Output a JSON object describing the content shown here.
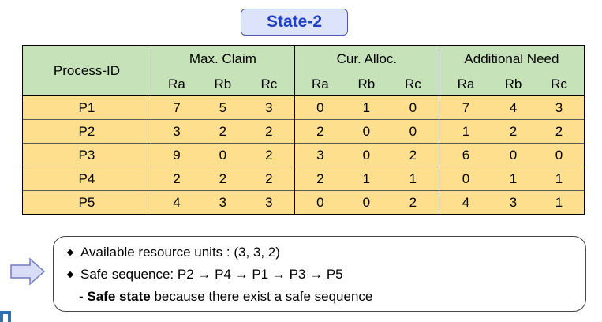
{
  "title": "State-2",
  "table": {
    "process_header": "Process-ID",
    "groups": [
      "Max. Claim",
      "Cur. Alloc.",
      "Additional Need"
    ],
    "resources": [
      "Ra",
      "Rb",
      "Rc"
    ],
    "rows": [
      {
        "id": "P1",
        "max": [
          "7",
          "5",
          "3"
        ],
        "cur": [
          "0",
          "1",
          "0"
        ],
        "need": [
          "7",
          "4",
          "3"
        ]
      },
      {
        "id": "P2",
        "max": [
          "3",
          "2",
          "2"
        ],
        "cur": [
          "2",
          "0",
          "0"
        ],
        "need": [
          "1",
          "2",
          "2"
        ]
      },
      {
        "id": "P3",
        "max": [
          "9",
          "0",
          "2"
        ],
        "cur": [
          "3",
          "0",
          "2"
        ],
        "need": [
          "6",
          "0",
          "0"
        ]
      },
      {
        "id": "P4",
        "max": [
          "2",
          "2",
          "2"
        ],
        "cur": [
          "2",
          "1",
          "1"
        ],
        "need": [
          "0",
          "1",
          "1"
        ]
      },
      {
        "id": "P5",
        "max": [
          "4",
          "3",
          "3"
        ],
        "cur": [
          "0",
          "0",
          "2"
        ],
        "need": [
          "4",
          "3",
          "1"
        ]
      }
    ]
  },
  "info": {
    "available": "Available resource units : (3, 3, 2)",
    "sequence": "Safe sequence: P2 → P4 → P1  → P3 → P5",
    "note_prefix": "- ",
    "note_bold": "Safe state",
    "note_rest": " because there exist a safe sequence"
  },
  "colors": {
    "title_text": "#1f3fc2",
    "title_bg": "#dde3fb",
    "header_bg": "#c6e2b8",
    "row_bg": "#fddf8e",
    "arrow_fill": "#d9ddf6",
    "arrow_stroke": "#6f7cc4"
  },
  "icons": {
    "arrow": "right-arrow-icon"
  }
}
